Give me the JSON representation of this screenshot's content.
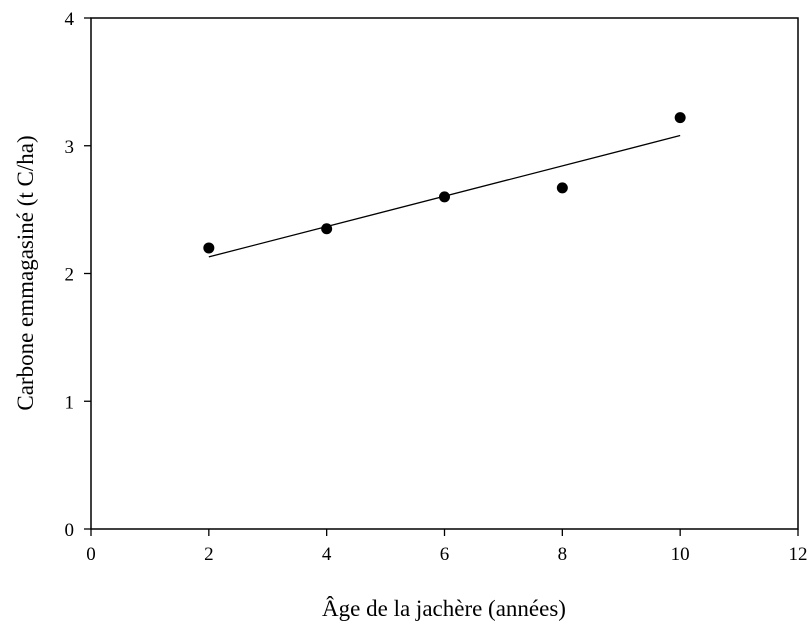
{
  "chart_data": {
    "type": "scatter",
    "title": "",
    "xlabel": "Âge de la jachère (années)",
    "ylabel": "Carbone emmagasiné (t C/ha)",
    "xlim": [
      0,
      12
    ],
    "ylim": [
      0,
      4
    ],
    "x_ticks": [
      0,
      2,
      4,
      6,
      8,
      10,
      12
    ],
    "y_ticks": [
      0,
      1,
      2,
      3,
      4
    ],
    "grid": false,
    "legend": "none",
    "series": [
      {
        "color": "#000000",
        "points": [
          {
            "x": 2,
            "y": 2.2
          },
          {
            "x": 4,
            "y": 2.35
          },
          {
            "x": 6,
            "y": 2.6
          },
          {
            "x": 8,
            "y": 2.67
          },
          {
            "x": 10,
            "y": 3.22
          }
        ]
      }
    ],
    "trendline": {
      "type": "linear",
      "x_range": [
        2,
        10
      ],
      "y_start": 2.13,
      "y_end": 3.08,
      "color": "#000000"
    }
  }
}
